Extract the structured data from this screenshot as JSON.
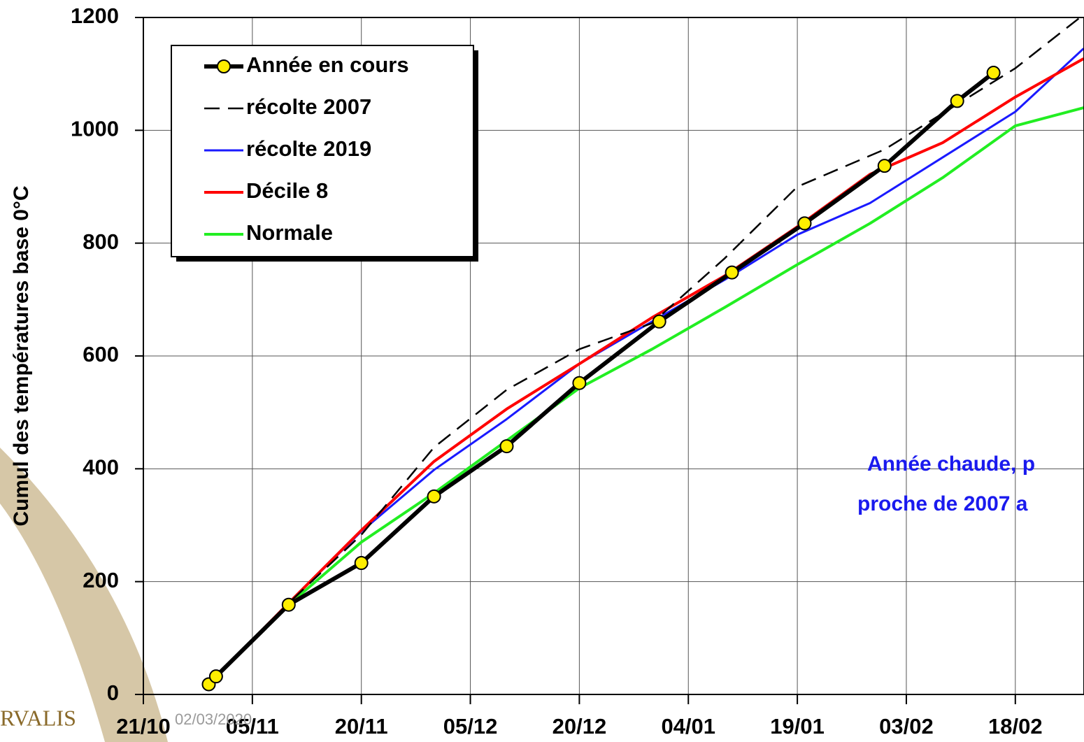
{
  "chart_data": {
    "type": "line",
    "y_label": "Cumul des températures base 0°C",
    "xlim": [
      0,
      129.4
    ],
    "ylim": [
      0,
      1200
    ],
    "xticks": [
      {
        "value": 0,
        "label": "21/10"
      },
      {
        "value": 15,
        "label": "05/11"
      },
      {
        "value": 30,
        "label": "20/11"
      },
      {
        "value": 45,
        "label": "05/12"
      },
      {
        "value": 60,
        "label": "20/12"
      },
      {
        "value": 75,
        "label": "04/01"
      },
      {
        "value": 90,
        "label": "19/01"
      },
      {
        "value": 105,
        "label": "03/02"
      },
      {
        "value": 120,
        "label": "18/02"
      }
    ],
    "yticks": [
      0,
      200,
      400,
      600,
      800,
      1000,
      1200
    ],
    "grid": true,
    "legend": "upper left",
    "series": [
      {
        "name": "Normale",
        "color": "#22ee22",
        "width": 4,
        "x": [
          9,
          20,
          30,
          40,
          50,
          60,
          70,
          80,
          90,
          100,
          110,
          120,
          129.4
        ],
        "values": [
          18,
          159,
          270,
          357,
          450,
          543,
          612,
          686,
          762,
          835,
          916,
          1008,
          1040
        ]
      },
      {
        "name": "récolte 2019",
        "color": "#1a1aff",
        "width": 3,
        "x": [
          9,
          20,
          30,
          40,
          50,
          60,
          70,
          80,
          90,
          100,
          110,
          120,
          129.4
        ],
        "values": [
          18,
          162,
          289,
          398,
          488,
          586,
          661,
          735,
          815,
          871,
          952,
          1033,
          1145
        ]
      },
      {
        "name": "Décile 8",
        "color": "#ff0000",
        "width": 4,
        "x": [
          9,
          20,
          30,
          40,
          50,
          60,
          70,
          80,
          90,
          100,
          110,
          120,
          129.4
        ],
        "values": [
          18,
          162,
          291,
          413,
          506,
          586,
          668,
          742,
          829,
          922,
          978,
          1059,
          1127
        ]
      },
      {
        "name": "récolte 2007",
        "color": "#000000",
        "width": 2.5,
        "dashed": true,
        "x": [
          9,
          20,
          30,
          40,
          50,
          60,
          70,
          80,
          90,
          102,
          110,
          120,
          129.4
        ],
        "values": [
          18,
          162,
          283,
          438,
          540,
          612,
          658,
          773,
          900,
          966,
          1030,
          1110,
          1205
        ]
      },
      {
        "name": "Année en cours",
        "color": "#000000",
        "width": 6,
        "markers": true,
        "marker_color": "#ffee00",
        "x": [
          9,
          10,
          20,
          30,
          40,
          50,
          60,
          71,
          81,
          91,
          102,
          112,
          117
        ],
        "values": [
          18,
          32,
          159,
          233,
          351,
          440,
          552,
          661,
          748,
          835,
          937,
          1052,
          1102
        ]
      }
    ],
    "legend_order": [
      4,
      3,
      1,
      2,
      0
    ],
    "annotations": [
      "Année chaude, p",
      "proche de 2007 a"
    ],
    "logo": "RVALIS",
    "date": "02/03/2020"
  }
}
